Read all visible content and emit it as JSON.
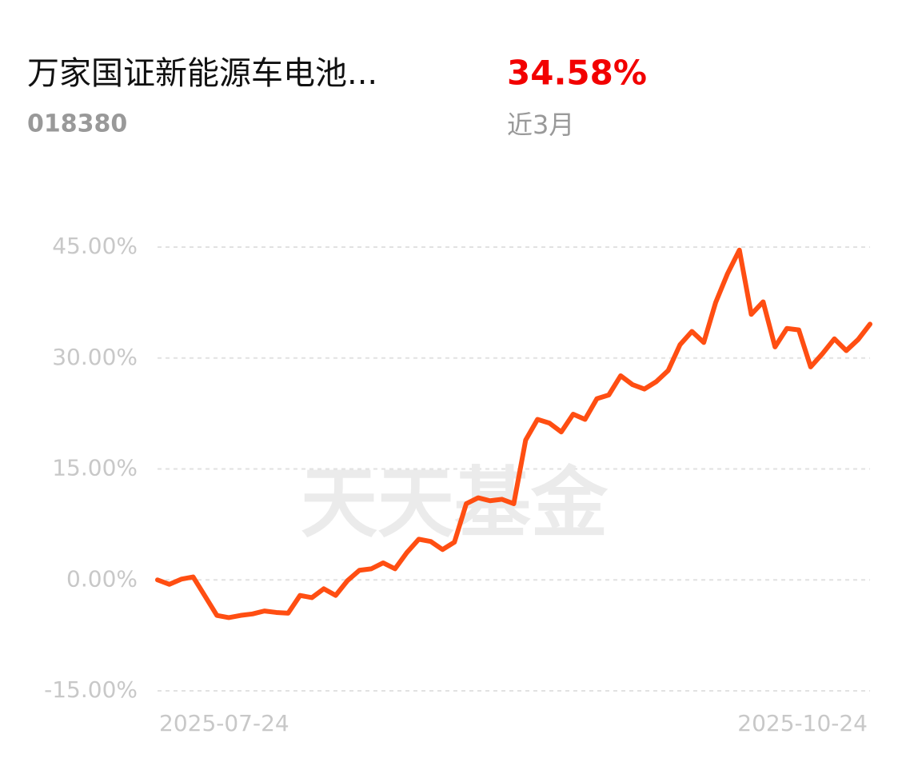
{
  "header": {
    "title": "万家国证新能源车电池...",
    "code": "018380",
    "return": "34.58%",
    "period": "近3月"
  },
  "chart_data": {
    "type": "line",
    "watermark": "天天基金",
    "categories": [
      "2025-07-24",
      null,
      null,
      null,
      null,
      null,
      null,
      null,
      null,
      null,
      null,
      null,
      null,
      null,
      null,
      null,
      null,
      null,
      null,
      null,
      null,
      null,
      null,
      null,
      null,
      null,
      null,
      null,
      null,
      null,
      null,
      null,
      null,
      null,
      null,
      null,
      null,
      null,
      null,
      null,
      null,
      null,
      null,
      null,
      null,
      null,
      null,
      null,
      null,
      null,
      null,
      null,
      null,
      null,
      null,
      null,
      null,
      null,
      null,
      null,
      "2025-10-24"
    ],
    "values": [
      0,
      -0.6,
      0.1,
      0.4,
      -2.2,
      -4.8,
      -5.1,
      -4.8,
      -4.6,
      -4.2,
      -4.4,
      -4.5,
      -2.1,
      -2.4,
      -1.2,
      -2.1,
      -0.1,
      1.3,
      1.5,
      2.3,
      1.5,
      3.7,
      5.5,
      5.2,
      4.1,
      5.1,
      10.3,
      11.1,
      10.7,
      10.9,
      10.3,
      18.9,
      21.7,
      21.2,
      20.0,
      22.4,
      21.7,
      24.5,
      25.0,
      27.6,
      26.4,
      25.8,
      26.8,
      28.3,
      31.8,
      33.6,
      32.1,
      37.5,
      41.4,
      44.6,
      35.9,
      37.6,
      31.5,
      34.0,
      33.8,
      28.8,
      30.6,
      32.6,
      31.0,
      32.5,
      34.58
    ],
    "color": "#ff4e12",
    "ylim": [
      -15,
      45
    ],
    "yticks": [
      {
        "value": -15,
        "label": "-15.00%"
      },
      {
        "value": 0,
        "label": "0.00%"
      },
      {
        "value": 15,
        "label": "15.00%"
      },
      {
        "value": 30,
        "label": "30.00%"
      },
      {
        "value": 45,
        "label": "45.00%"
      }
    ],
    "grid": true
  }
}
